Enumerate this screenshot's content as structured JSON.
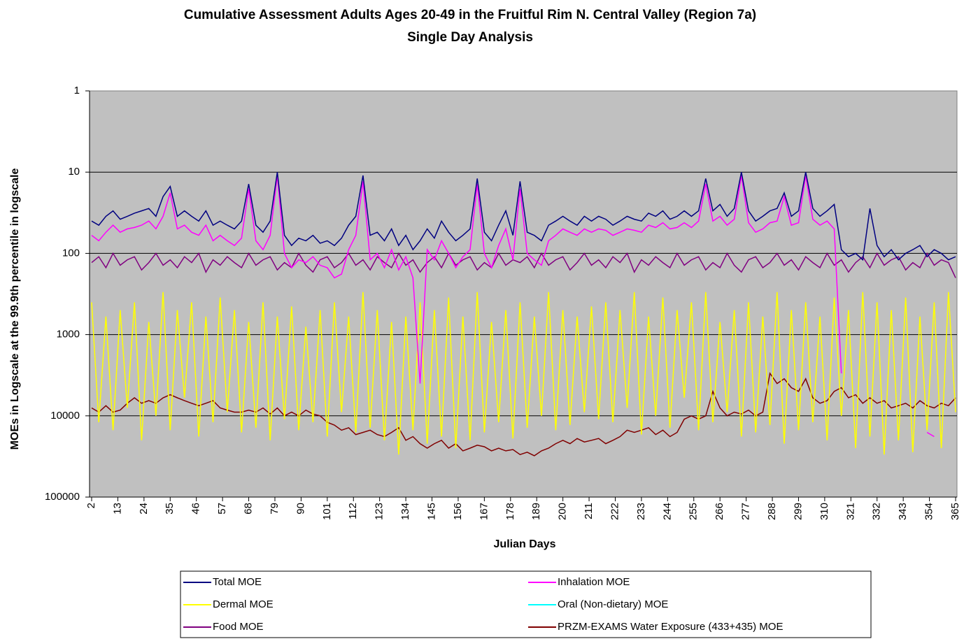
{
  "chart_data": {
    "type": "line",
    "title": "Cumulative Assessment Adults Ages 20-49 in the Fruitful Rim N. Central Valley (Region 7a)",
    "subtitle": "Single Day Analysis",
    "x_label": "Julian Days",
    "y_label": "MOEs in Logscale at the 99.9th percentile in logscale",
    "y_scale": "log",
    "grid": true,
    "plot_background": "#c0c0c0",
    "legend_position": "bottom",
    "xlim": [
      2,
      365
    ],
    "xticks": [
      2,
      13,
      24,
      35,
      46,
      57,
      68,
      79,
      90,
      101,
      112,
      123,
      134,
      145,
      156,
      167,
      178,
      189,
      200,
      211,
      222,
      233,
      244,
      255,
      266,
      277,
      288,
      299,
      310,
      321,
      332,
      343,
      354,
      365
    ],
    "ylim": [
      100000,
      1
    ],
    "yticks": [
      1,
      10,
      100,
      1000,
      10000,
      100000
    ],
    "x": [
      2,
      5,
      8,
      11,
      14,
      17,
      20,
      23,
      26,
      29,
      32,
      35,
      38,
      41,
      44,
      47,
      50,
      53,
      56,
      59,
      62,
      65,
      68,
      71,
      74,
      77,
      80,
      83,
      86,
      89,
      92,
      95,
      98,
      101,
      104,
      107,
      110,
      113,
      116,
      119,
      122,
      125,
      128,
      131,
      134,
      137,
      140,
      143,
      146,
      149,
      152,
      155,
      158,
      161,
      164,
      167,
      170,
      173,
      176,
      179,
      182,
      185,
      188,
      191,
      194,
      197,
      200,
      203,
      206,
      209,
      212,
      215,
      218,
      221,
      224,
      227,
      230,
      233,
      236,
      239,
      242,
      245,
      248,
      251,
      254,
      257,
      260,
      263,
      266,
      269,
      272,
      275,
      278,
      281,
      284,
      287,
      290,
      293,
      296,
      299,
      302,
      305,
      308,
      311,
      314,
      317,
      320,
      323,
      326,
      329,
      332,
      335,
      338,
      341,
      344,
      347,
      350,
      353,
      356,
      359,
      362,
      365
    ],
    "series": [
      {
        "name": "Total MOE",
        "color": "#000080",
        "values": [
          40,
          45,
          35,
          30,
          38,
          35,
          32,
          30,
          28,
          35,
          20,
          15,
          35,
          30,
          35,
          40,
          30,
          45,
          40,
          45,
          50,
          40,
          14,
          45,
          55,
          40,
          10,
          60,
          80,
          65,
          70,
          60,
          75,
          70,
          80,
          65,
          45,
          35,
          11,
          60,
          55,
          70,
          50,
          80,
          60,
          90,
          70,
          50,
          65,
          40,
          55,
          70,
          60,
          50,
          12,
          55,
          70,
          45,
          30,
          60,
          13,
          55,
          60,
          70,
          45,
          40,
          35,
          40,
          45,
          35,
          40,
          35,
          38,
          45,
          40,
          35,
          38,
          40,
          32,
          35,
          30,
          38,
          35,
          30,
          35,
          30,
          12,
          30,
          25,
          35,
          28,
          10,
          30,
          40,
          35,
          30,
          28,
          18,
          35,
          30,
          10,
          28,
          35,
          30,
          25,
          90,
          110,
          100,
          120,
          28,
          80,
          110,
          90,
          120,
          100,
          90,
          80,
          110,
          90,
          100,
          120,
          110
        ]
      },
      {
        "name": "Inhalation MOE",
        "color": "#ff00ff",
        "values": [
          60,
          70,
          55,
          45,
          55,
          50,
          48,
          45,
          40,
          50,
          35,
          18,
          50,
          45,
          55,
          60,
          45,
          70,
          60,
          70,
          80,
          65,
          16,
          70,
          90,
          60,
          11,
          100,
          150,
          120,
          130,
          110,
          140,
          150,
          200,
          180,
          90,
          60,
          13,
          120,
          100,
          150,
          90,
          160,
          110,
          200,
          4000,
          90,
          120,
          70,
          100,
          150,
          110,
          90,
          14,
          100,
          150,
          80,
          50,
          120,
          16,
          100,
          120,
          140,
          70,
          60,
          50,
          55,
          60,
          50,
          55,
          50,
          52,
          60,
          55,
          50,
          52,
          55,
          45,
          48,
          42,
          50,
          48,
          42,
          48,
          40,
          14,
          40,
          35,
          45,
          38,
          11,
          42,
          55,
          50,
          42,
          40,
          20,
          45,
          42,
          11,
          38,
          45,
          40,
          50,
          3000,
          null,
          null,
          null,
          null,
          null,
          null,
          null,
          null,
          null,
          null,
          null,
          16000,
          18000,
          null,
          null,
          null
        ]
      },
      {
        "name": "Dermal MOE",
        "color": "#ffff00",
        "values": [
          400,
          12000,
          600,
          15000,
          500,
          8000,
          400,
          20000,
          700,
          10000,
          300,
          15000,
          500,
          6000,
          400,
          18000,
          600,
          12000,
          350,
          9000,
          500,
          16000,
          700,
          14000,
          400,
          20000,
          600,
          11000,
          450,
          15000,
          800,
          12000,
          500,
          18000,
          400,
          9000,
          600,
          16000,
          300,
          14000,
          500,
          20000,
          700,
          30000,
          600,
          15000,
          400,
          22000,
          500,
          18000,
          350,
          25000,
          600,
          20000,
          300,
          16000,
          700,
          12000,
          500,
          19000,
          400,
          14000,
          600,
          10000,
          300,
          15000,
          500,
          13000,
          600,
          9000,
          450,
          11000,
          400,
          12000,
          500,
          8000,
          300,
          17000,
          600,
          10000,
          350,
          14000,
          500,
          6000,
          400,
          15000,
          300,
          12000,
          700,
          9000,
          500,
          18000,
          400,
          16000,
          600,
          13000,
          300,
          22000,
          500,
          15000,
          400,
          12000,
          600,
          20000,
          350,
          10000,
          500,
          25000,
          300,
          18000,
          400,
          30000,
          500,
          20000,
          350,
          28000,
          600,
          15000,
          400,
          25000,
          300,
          9000
        ]
      },
      {
        "name": "Oral (Non-dietary) MOE",
        "color": "#00ffff",
        "values": [
          null,
          null,
          null,
          null,
          null,
          null,
          null,
          null,
          null,
          null,
          null,
          null,
          null,
          null,
          null,
          null,
          null,
          null,
          null,
          null,
          null,
          null,
          null,
          null,
          null,
          null,
          null,
          null,
          null,
          null,
          null,
          null,
          null,
          null,
          null,
          null,
          null,
          null,
          null,
          null,
          null,
          null,
          null,
          null,
          null,
          null,
          null,
          null,
          null,
          null,
          null,
          null,
          null,
          null,
          null,
          null,
          null,
          null,
          null,
          null,
          null,
          null,
          null,
          null,
          null,
          null,
          null,
          null,
          null,
          null,
          null,
          null,
          null,
          null,
          null,
          null,
          null,
          null,
          null,
          null,
          null,
          null,
          null,
          null,
          null,
          null,
          null,
          null,
          null,
          null,
          null,
          null,
          null,
          null,
          null,
          null,
          null,
          null,
          null,
          null,
          null,
          null,
          null,
          null,
          null,
          null,
          null,
          null,
          null,
          null,
          null,
          null,
          null,
          null,
          null,
          null,
          null,
          null,
          null,
          null,
          null,
          null
        ]
      },
      {
        "name": "Food MOE",
        "color": "#800080",
        "values": [
          130,
          110,
          150,
          100,
          140,
          120,
          110,
          160,
          130,
          100,
          140,
          120,
          150,
          110,
          130,
          100,
          170,
          120,
          140,
          110,
          130,
          150,
          100,
          140,
          120,
          110,
          160,
          130,
          150,
          100,
          140,
          170,
          120,
          110,
          150,
          130,
          100,
          140,
          120,
          160,
          110,
          130,
          150,
          100,
          140,
          120,
          170,
          130,
          110,
          150,
          100,
          140,
          120,
          110,
          160,
          130,
          150,
          100,
          140,
          120,
          130,
          110,
          150,
          100,
          140,
          120,
          110,
          160,
          130,
          100,
          140,
          120,
          150,
          110,
          130,
          100,
          170,
          120,
          140,
          110,
          130,
          150,
          100,
          140,
          120,
          110,
          160,
          130,
          150,
          100,
          140,
          170,
          120,
          110,
          150,
          130,
          100,
          140,
          120,
          160,
          110,
          130,
          150,
          100,
          140,
          120,
          170,
          130,
          110,
          150,
          100,
          140,
          120,
          110,
          160,
          130,
          150,
          100,
          140,
          120,
          130,
          200
        ]
      },
      {
        "name": "PRZM-EXAMS Water Exposure (433+435) MOE",
        "color": "#800000",
        "values": [
          8000,
          9000,
          7500,
          9000,
          8500,
          7000,
          6000,
          7000,
          6500,
          7000,
          6000,
          5500,
          6000,
          6500,
          7000,
          7500,
          7000,
          6500,
          8000,
          8500,
          9000,
          9000,
          8500,
          9000,
          8000,
          9500,
          8000,
          10000,
          9000,
          10000,
          8500,
          9500,
          10000,
          12000,
          13000,
          15000,
          14000,
          17000,
          16000,
          15000,
          17000,
          18000,
          16000,
          14000,
          20000,
          18000,
          22000,
          25000,
          22000,
          20000,
          25000,
          22000,
          27000,
          25000,
          23000,
          24000,
          27000,
          25000,
          27000,
          26000,
          30000,
          28000,
          31000,
          27000,
          25000,
          22000,
          20000,
          22000,
          19000,
          21000,
          20000,
          19000,
          22000,
          20000,
          18000,
          15000,
          16000,
          15000,
          14000,
          17000,
          15000,
          18000,
          16000,
          11000,
          10000,
          11000,
          10000,
          5000,
          8000,
          10000,
          9000,
          9500,
          8500,
          10000,
          9000,
          3000,
          4000,
          3500,
          4500,
          5000,
          3500,
          6000,
          7000,
          6500,
          5000,
          4500,
          6000,
          5500,
          7000,
          6000,
          7000,
          6500,
          8000,
          7500,
          7000,
          8000,
          6500,
          7500,
          8000,
          7000,
          7500,
          6000
        ]
      }
    ]
  }
}
